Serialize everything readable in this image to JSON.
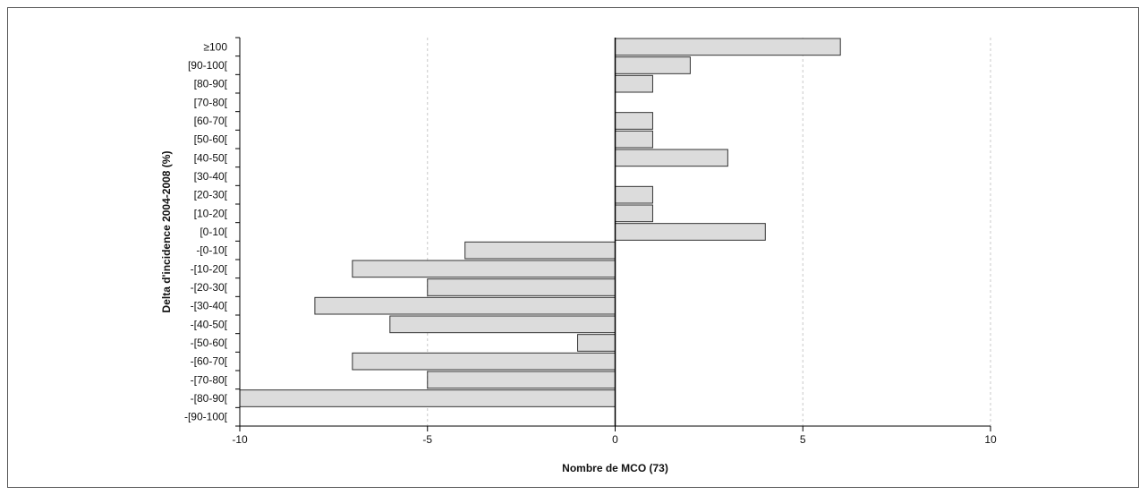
{
  "chart_data": {
    "type": "bar",
    "orientation": "horizontal",
    "xlabel": "Nombre de MCO (73)",
    "ylabel": "Delta d'incidence 2004-2008 (%)",
    "xlim": [
      -10,
      10
    ],
    "xticks": [
      "-10",
      "-5",
      "0",
      "5",
      "10"
    ],
    "xtick_values": [
      -10,
      -5,
      0,
      5,
      10
    ],
    "grid": "vertical dashed",
    "categories": [
      "≥100",
      "[90-100[",
      "[80-90[",
      "[70-80[",
      "[60-70[",
      "[50-60[",
      "[40-50[",
      "[30-40[",
      "[20-30[",
      "[10-20[",
      "[0-10[",
      "-[0-10[",
      "-[10-20[",
      "-[20-30[",
      "-[30-40[",
      "-[40-50[",
      "-[50-60[",
      "-[60-70[",
      "-[70-80[",
      "-[80-90[",
      "-[90-100["
    ],
    "values": [
      6,
      2,
      1,
      0,
      1,
      1,
      3,
      0,
      1,
      1,
      4,
      -4,
      -7,
      -5,
      -8,
      -6,
      -1,
      -7,
      -5,
      -10,
      0
    ],
    "colors": {
      "bar_fill": "#dcdcdc",
      "bar_stroke": "#333333",
      "axis": "#000000",
      "grid": "#c8c8c8"
    }
  }
}
